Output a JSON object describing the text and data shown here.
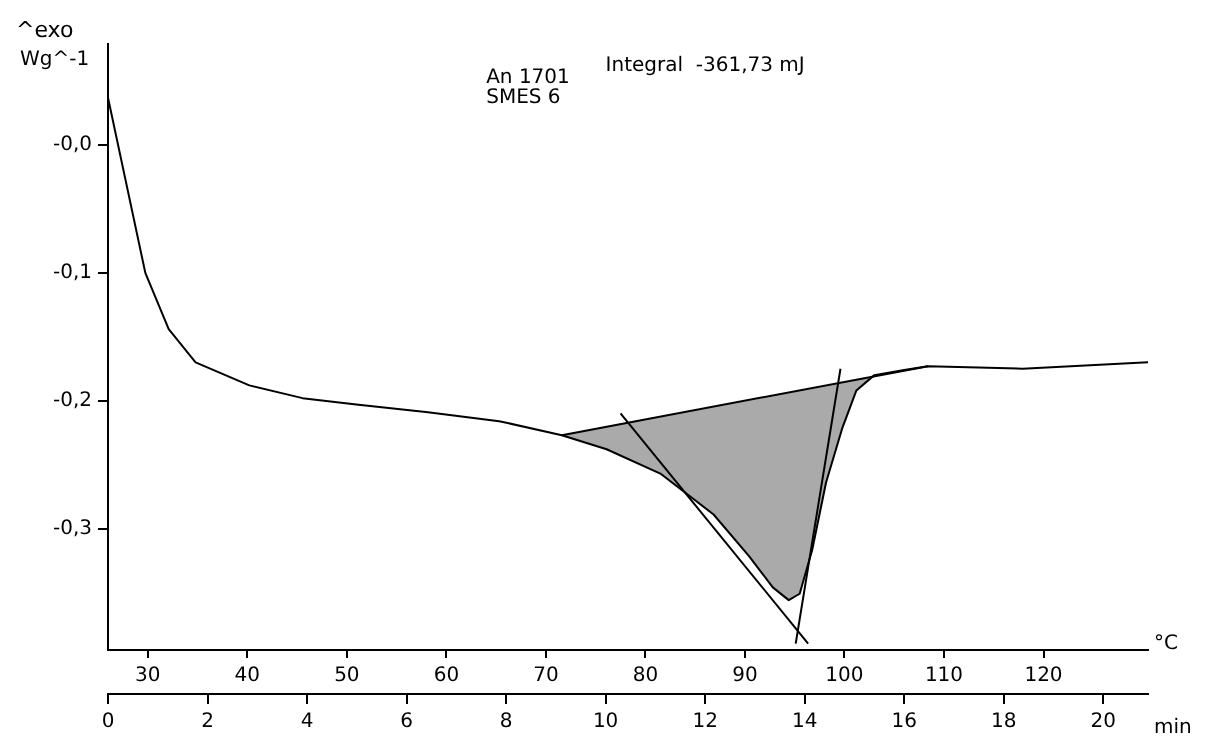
{
  "chart_data": {
    "type": "line",
    "ylabel": "Wg^-1",
    "xlabel": "min",
    "x2label": "°C",
    "annotations": [
      "^exo",
      "An 1701",
      "SMES 6",
      "Integral  -361,73 mJ"
    ],
    "xlim": [
      0,
      20.9
    ],
    "xticks": [
      0,
      2,
      4,
      6,
      8,
      10,
      12,
      14,
      16,
      18,
      20
    ],
    "x2lim": [
      26,
      130.5
    ],
    "x2ticks": [
      30,
      40,
      50,
      60,
      70,
      80,
      90,
      100,
      110,
      120
    ],
    "ylim": [
      -0.395,
      0.079
    ],
    "yticks": [
      {
        "value": 0,
        "label": "-0,0"
      },
      {
        "value": -0.1,
        "label": "-0,1"
      },
      {
        "value": -0.2,
        "label": "-0,2"
      },
      {
        "value": -0.3,
        "label": "-0,3"
      }
    ],
    "grid": false,
    "legend": false,
    "marker": "none",
    "line_style": "solid",
    "series": [
      {
        "color": "#000000",
        "x": [
          0,
          0.75,
          1.22,
          1.76,
          2.84,
          3.91,
          4.99,
          6.43,
          7.86,
          9.12,
          10.02,
          11.1,
          12.17,
          12.89,
          13.36,
          13.68,
          13.9,
          14.15,
          14.43,
          14.76,
          15.04,
          15.4,
          16.0,
          16.48,
          18.38,
          20.9
        ],
        "values": [
          0.037,
          -0.1,
          -0.144,
          -0.17,
          -0.188,
          -0.198,
          -0.203,
          -0.209,
          -0.216,
          -0.227,
          -0.238,
          -0.257,
          -0.289,
          -0.322,
          -0.346,
          -0.356,
          -0.351,
          -0.317,
          -0.264,
          -0.221,
          -0.192,
          -0.18,
          -0.176,
          -0.173,
          -0.175,
          -0.17
        ],
        "lower": [
          null,
          null,
          null,
          null,
          null,
          null,
          null,
          null,
          null,
          -0.227,
          -0.238,
          -0.257,
          -0.289,
          -0.322,
          -0.346,
          -0.356,
          -0.351,
          -0.317,
          -0.264,
          -0.221,
          -0.192,
          -0.181,
          -0.177,
          -0.173,
          null,
          null
        ],
        "upper": [
          null,
          null,
          null,
          null,
          null,
          null,
          null,
          null,
          null,
          -0.227,
          -0.22,
          -0.212,
          -0.205,
          -0.199,
          -0.196,
          -0.194,
          -0.192,
          -0.19,
          -0.188,
          -0.186,
          -0.184,
          -0.181,
          -0.177,
          -0.173,
          null,
          null
        ]
      },
      {
        "color": "#000000",
        "x": [
          9.12,
          16.48
        ],
        "values": [
          -0.227,
          -0.173
        ]
      },
      {
        "color": "#000000",
        "x": [
          10.3,
          14.07
        ],
        "values": [
          -0.21,
          -0.39
        ]
      },
      {
        "color": "#000000",
        "x": [
          13.82,
          14.72
        ],
        "values": [
          -0.39,
          -0.175
        ]
      }
    ]
  }
}
